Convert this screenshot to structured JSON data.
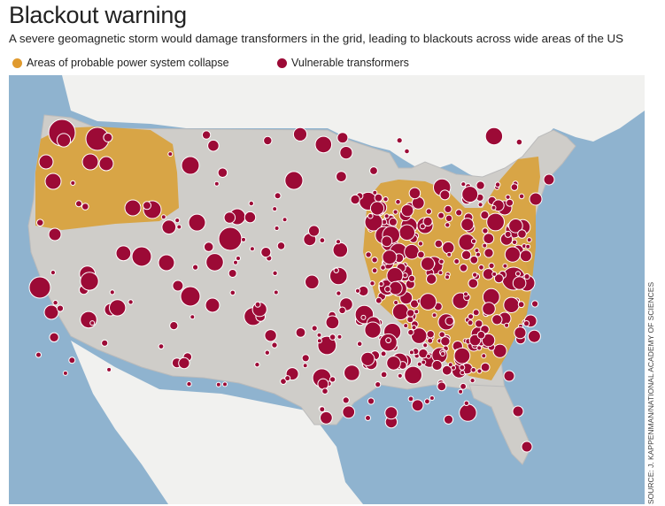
{
  "title": "Blackout warning",
  "subtitle": "A severe geomagnetic storm would damage transformers in the grid, leading to blackouts across wide areas of the US",
  "legend": {
    "areas_label": "Areas of probable power system collapse",
    "transformers_label": "Vulnerable transformers"
  },
  "colors": {
    "collapse_area": "#d9a23b",
    "transformer": "#9c0a36",
    "water": "#8fb3cf",
    "us_land": "#cfcdc9",
    "foreign_land": "#f1f1ef"
  },
  "source": "SOURCE: J. KAPPENMAN/NATIONAL ACADEMY OF SCIENCES",
  "map": {
    "region": "Contiguous United States",
    "collapse_regions": [
      "Pacific Northwest",
      "Northeast, Mid-Atlantic and Great Lakes"
    ]
  }
}
